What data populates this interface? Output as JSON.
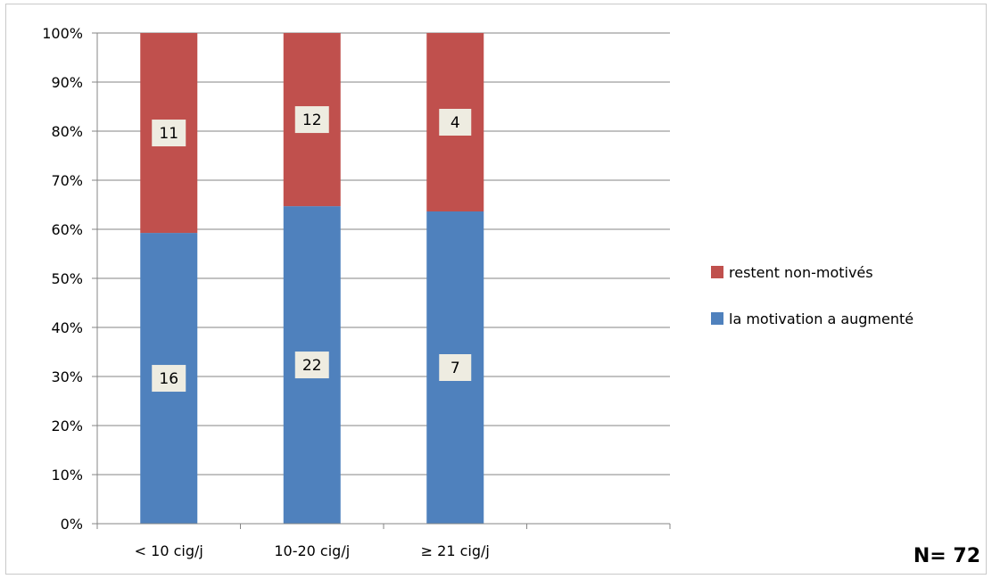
{
  "chart_data": {
    "type": "bar",
    "stacked": true,
    "percent_stacked": true,
    "categories": [
      "< 10 cig/j",
      "10-20 cig/j",
      "≥ 21 cig/j",
      ""
    ],
    "series": [
      {
        "name": "la motivation a augmenté",
        "values": [
          16,
          22,
          7,
          null
        ],
        "color": "#4f81bd"
      },
      {
        "name": "restent non-motivés",
        "values": [
          11,
          12,
          4,
          null
        ],
        "color": "#c0504d"
      }
    ],
    "ylim": [
      0,
      100
    ],
    "yticks": [
      "0%",
      "10%",
      "20%",
      "30%",
      "40%",
      "50%",
      "60%",
      "70%",
      "80%",
      "90%",
      "100%"
    ],
    "grid": true,
    "legend_position": "right",
    "annotation": "N= 72"
  }
}
